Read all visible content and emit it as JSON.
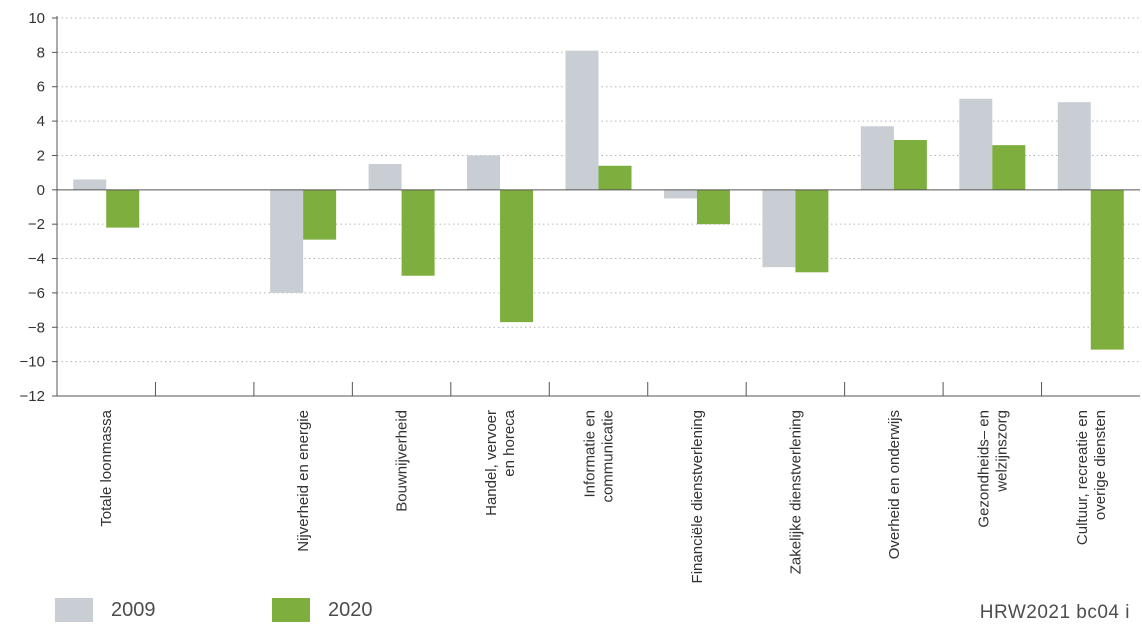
{
  "chart_data": {
    "type": "bar",
    "categories": [
      [
        "Totale loonmassa"
      ],
      [],
      [
        "Nijverheid en energie"
      ],
      [
        "Bouwnijverheid"
      ],
      [
        "Handel, vervoer",
        "en horeca"
      ],
      [
        "Informatie en",
        "communicatie"
      ],
      [
        "Financiële dienstverlening"
      ],
      [
        "Zakelijke dienstverlening"
      ],
      [
        "Overheid en onderwijs"
      ],
      [
        "Gezondheids– en",
        "welzijnszorg"
      ],
      [
        "Cultuur, recreatie en",
        "overige diensten"
      ]
    ],
    "series": [
      {
        "name": "2009",
        "color": "#c8ced3",
        "values": [
          0.6,
          null,
          -6.0,
          1.5,
          2.0,
          8.1,
          -0.5,
          -4.5,
          3.7,
          5.3,
          5.1
        ]
      },
      {
        "name": "2020",
        "color": "#7dae3e",
        "values": [
          -2.2,
          null,
          -2.9,
          -5.0,
          -7.7,
          1.4,
          -2.0,
          -4.8,
          2.9,
          2.6,
          -9.3
        ]
      }
    ],
    "ylim": [
      -12,
      10
    ],
    "yticks": [
      "10",
      "8",
      "6",
      "4",
      "2",
      "0",
      "−2",
      "−4",
      "−6",
      "−8",
      "−10",
      "−12"
    ],
    "grid": true,
    "legend_position": "bottom-left"
  },
  "legend": {
    "items": [
      {
        "label": "2009",
        "color": "#c8ced3"
      },
      {
        "label": "2020",
        "color": "#7dae3e"
      }
    ]
  },
  "footer": {
    "source_id": "HRW2021  bc04  i"
  }
}
